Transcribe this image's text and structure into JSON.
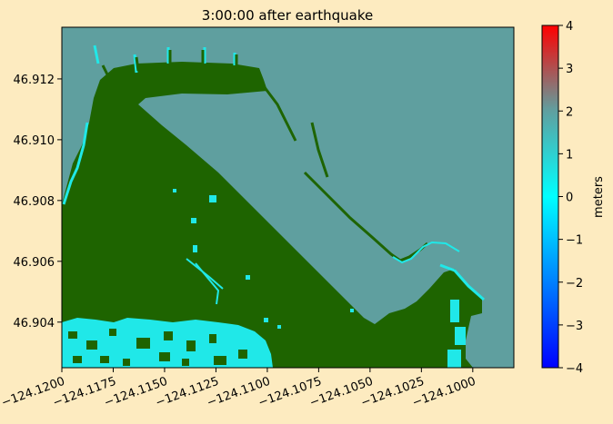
{
  "chart_data": {
    "type": "heatmap",
    "title": "3:00:00 after earthquake",
    "x_ticks": [
      "−124.1200",
      "−124.1175",
      "−124.1150",
      "−124.1125",
      "−124.1100",
      "−124.1075",
      "−124.1050",
      "−124.1025",
      "−124.1000"
    ],
    "x_tick_values": [
      -124.12,
      -124.1175,
      -124.115,
      -124.1125,
      -124.11,
      -124.1075,
      -124.105,
      -124.1025,
      -124.1
    ],
    "xlim": [
      -124.12,
      -124.098
    ],
    "y_ticks": [
      "46.912",
      "46.910",
      "46.908",
      "46.906",
      "46.904"
    ],
    "y_tick_values": [
      46.912,
      46.91,
      46.908,
      46.906,
      46.904
    ],
    "ylim": [
      46.9025,
      46.9137
    ],
    "colorbar": {
      "label": "meters",
      "ticks": [
        "4",
        "3",
        "2",
        "1",
        "0",
        "−1",
        "−2",
        "−3",
        "−4"
      ],
      "tick_values": [
        4,
        3,
        2,
        1,
        0,
        -1,
        -2,
        -3,
        -4
      ],
      "range": [
        -4,
        4
      ],
      "colors": [
        "#0000ff",
        "#0080ff",
        "#00ffff",
        "#5fa0a0",
        "#ff0000"
      ]
    },
    "land_color": "#1e6400",
    "water_color": "#5f9f9f",
    "cyan_color": "#20e8e8"
  }
}
